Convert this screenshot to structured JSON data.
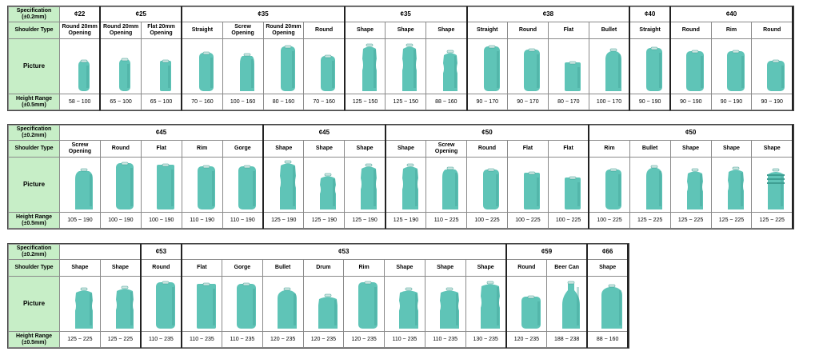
{
  "labels": {
    "spec": "Specification (±0.2mm)",
    "spec_l1": "Specification",
    "spec_l2": "(±0.2mm)",
    "shoulder": "Shoulder Type",
    "picture": "Picture",
    "height_l1": "Height Range",
    "height_l2": "(±0.5mm)"
  },
  "colors": {
    "can": "#5fc4b7",
    "can_dark": "#3f9f93",
    "label_bg": "#c7eec7",
    "border": "#8a8a8a"
  },
  "table1": {
    "specs": [
      {
        "text": "¢22",
        "span": 1
      },
      {
        "text": "¢25",
        "span": 2
      },
      {
        "text": "¢35",
        "span": 4
      },
      {
        "text": "¢35",
        "span": 3
      },
      {
        "text": "¢38",
        "span": 4
      },
      {
        "text": "¢40",
        "span": 1
      },
      {
        "text": "¢40",
        "span": 3
      }
    ],
    "cols": [
      {
        "shoulder": "Round 20mm Opening",
        "height": "58 ~ 100",
        "shape": "round",
        "w": 14,
        "h": 38
      },
      {
        "shoulder": "Round 20mm Opening",
        "height": "65 ~ 100",
        "shape": "round",
        "w": 14,
        "h": 40
      },
      {
        "shoulder": "Flat 20mm Opening",
        "height": "65 ~ 100",
        "shape": "flat",
        "w": 14,
        "h": 38
      },
      {
        "shoulder": "Straight",
        "height": "70 ~ 160",
        "shape": "straight",
        "w": 18,
        "h": 48
      },
      {
        "shoulder": "Screw Opening",
        "height": "100 ~ 160",
        "shape": "screw",
        "w": 18,
        "h": 46
      },
      {
        "shoulder": "Round 20mm Opening",
        "height": "80 ~ 160",
        "shape": "round",
        "w": 18,
        "h": 56
      },
      {
        "shoulder": "Round",
        "height": "70 ~ 160",
        "shape": "round",
        "w": 18,
        "h": 44
      },
      {
        "shoulder": "Shape",
        "height": "125 ~ 150",
        "shape": "shape",
        "w": 18,
        "h": 58
      },
      {
        "shoulder": "Shape",
        "height": "125 ~ 150",
        "shape": "shape",
        "w": 18,
        "h": 58
      },
      {
        "shoulder": "Shape",
        "height": "88 ~ 160",
        "shape": "shape",
        "w": 18,
        "h": 50
      },
      {
        "shoulder": "Straight",
        "height": "90 ~ 170",
        "shape": "straight",
        "w": 20,
        "h": 56
      },
      {
        "shoulder": "Round",
        "height": "90 ~ 170",
        "shape": "round",
        "w": 20,
        "h": 52
      },
      {
        "shoulder": "Flat",
        "height": "80 ~ 170",
        "shape": "flat",
        "w": 20,
        "h": 36
      },
      {
        "shoulder": "Bullet",
        "height": "100 ~ 170",
        "shape": "bullet",
        "w": 20,
        "h": 52
      },
      {
        "shoulder": "Straight",
        "height": "90 ~ 190",
        "shape": "straight",
        "w": 20,
        "h": 54
      },
      {
        "shoulder": "Round",
        "height": "90 ~ 190",
        "shape": "round",
        "w": 22,
        "h": 50
      },
      {
        "shoulder": "Rim",
        "height": "90 ~ 190",
        "shape": "rim",
        "w": 22,
        "h": 50
      },
      {
        "shoulder": "Round",
        "height": "90 ~ 190",
        "shape": "round",
        "w": 22,
        "h": 38
      }
    ]
  },
  "table2": {
    "specs": [
      {
        "text": "¢45",
        "span": 5
      },
      {
        "text": "¢45",
        "span": 3
      },
      {
        "text": "¢50",
        "span": 5
      },
      {
        "text": "¢50",
        "span": 5
      }
    ],
    "cols": [
      {
        "shoulder": "Screw Opening",
        "height": "105 ~ 190",
        "shape": "screw",
        "w": 22,
        "h": 50
      },
      {
        "shoulder": "Round",
        "height": "100 ~ 190",
        "shape": "round",
        "w": 22,
        "h": 58
      },
      {
        "shoulder": "Flat",
        "height": "100 ~ 190",
        "shape": "flat",
        "w": 22,
        "h": 56
      },
      {
        "shoulder": "Rim",
        "height": "110 ~ 190",
        "shape": "rim",
        "w": 22,
        "h": 54
      },
      {
        "shoulder": "Gorge",
        "height": "110 ~ 190",
        "shape": "gorge",
        "w": 22,
        "h": 54
      },
      {
        "shoulder": "Shape",
        "height": "125 ~ 190",
        "shape": "shape",
        "w": 20,
        "h": 60
      },
      {
        "shoulder": "Shape",
        "height": "125 ~ 190",
        "shape": "shape2",
        "w": 20,
        "h": 44
      },
      {
        "shoulder": "Shape",
        "height": "125 ~ 190",
        "shape": "shape",
        "w": 20,
        "h": 56
      },
      {
        "shoulder": "Shape",
        "height": "125 ~ 190",
        "shape": "shape",
        "w": 20,
        "h": 56
      },
      {
        "shoulder": "Screw Opening",
        "height": "110 ~ 225",
        "shape": "screw",
        "w": 20,
        "h": 52
      },
      {
        "shoulder": "Round",
        "height": "100 ~ 225",
        "shape": "round",
        "w": 20,
        "h": 50
      },
      {
        "shoulder": "Flat",
        "height": "100 ~ 225",
        "shape": "flat",
        "w": 20,
        "h": 46
      },
      {
        "shoulder": "Flat",
        "height": "100 ~ 225",
        "shape": "flat",
        "w": 20,
        "h": 40
      },
      {
        "shoulder": "Rim",
        "height": "100 ~ 225",
        "shape": "rim",
        "w": 20,
        "h": 50
      },
      {
        "shoulder": "Bullet",
        "height": "125 ~ 225",
        "shape": "bullet",
        "w": 20,
        "h": 54
      },
      {
        "shoulder": "Shape",
        "height": "125 ~ 225",
        "shape": "shape",
        "w": 20,
        "h": 50
      },
      {
        "shoulder": "Shape",
        "height": "125 ~ 225",
        "shape": "shape2",
        "w": 20,
        "h": 52
      },
      {
        "shoulder": "Shape",
        "height": "125 ~ 225",
        "shape": "ribbed",
        "w": 20,
        "h": 50
      }
    ]
  },
  "table3": {
    "specs": [
      {
        "text": "",
        "span": 2
      },
      {
        "text": "¢53",
        "span": 1
      },
      {
        "text": "¢53",
        "span": 8
      },
      {
        "text": "¢59",
        "span": 2
      },
      {
        "text": "¢66",
        "span": 1
      }
    ],
    "cols": [
      {
        "shoulder": "Shape",
        "height": "125 ~ 225",
        "shape": "shape",
        "w": 22,
        "h": 50
      },
      {
        "shoulder": "Shape",
        "height": "125 ~ 225",
        "shape": "shape",
        "w": 22,
        "h": 52
      },
      {
        "shoulder": "Round",
        "height": "110 ~ 235",
        "shape": "round",
        "w": 24,
        "h": 58
      },
      {
        "shoulder": "Flat",
        "height": "110 ~ 235",
        "shape": "flat",
        "w": 24,
        "h": 56
      },
      {
        "shoulder": "Gorge",
        "height": "110 ~ 235",
        "shape": "gorge",
        "w": 24,
        "h": 56
      },
      {
        "shoulder": "Bullet",
        "height": "120 ~ 235",
        "shape": "bullet",
        "w": 24,
        "h": 50
      },
      {
        "shoulder": "Drum",
        "height": "120 ~ 235",
        "shape": "drum",
        "w": 24,
        "h": 42
      },
      {
        "shoulder": "Rim",
        "height": "120 ~ 235",
        "shape": "rim",
        "w": 24,
        "h": 58
      },
      {
        "shoulder": "Shape",
        "height": "110 ~ 235",
        "shape": "shape",
        "w": 24,
        "h": 50
      },
      {
        "shoulder": "Shape",
        "height": "110 ~ 235",
        "shape": "shape",
        "w": 24,
        "h": 50
      },
      {
        "shoulder": "Shape",
        "height": "130 ~ 235",
        "shape": "shape",
        "w": 24,
        "h": 58
      },
      {
        "shoulder": "Round",
        "height": "120 ~ 235",
        "shape": "round",
        "w": 24,
        "h": 40
      },
      {
        "shoulder": "Beer Can",
        "height": "188 ~ 238",
        "shape": "beer",
        "w": 22,
        "h": 58
      },
      {
        "shoulder": "Shape",
        "height": "88 ~ 160",
        "shape": "bullet",
        "w": 26,
        "h": 54
      }
    ]
  }
}
